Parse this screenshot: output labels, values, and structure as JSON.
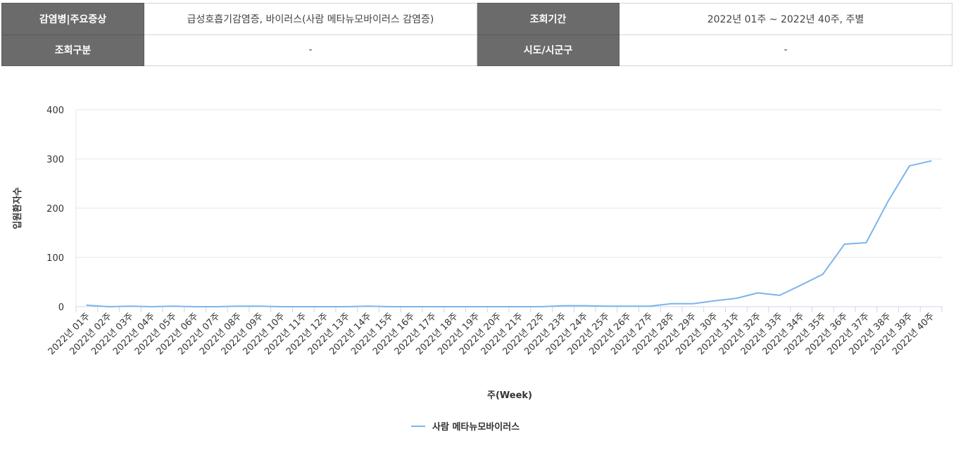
{
  "info_table": {
    "disease_label": "감염병|주요증상",
    "disease_value": "급성호흡기감염증, 바이러스(사람 메타뉴모바이러스 감염증)",
    "period_label": "조회기간",
    "period_value": "2022년 01주 ~ 2022년 40주, 주별",
    "category_label": "조회구분",
    "category_value": "-",
    "region_label": "시도/시군구",
    "region_value": "-"
  },
  "chart_data": {
    "type": "line",
    "xlabel": "주(Week)",
    "ylabel": "입원환자수",
    "ylim": [
      0,
      400
    ],
    "yticks": [
      0,
      100,
      200,
      300,
      400
    ],
    "grid": true,
    "legend_position": "bottom-center",
    "categories": [
      "2022년 01주",
      "2022년 02주",
      "2022년 03주",
      "2022년 04주",
      "2022년 05주",
      "2022년 06주",
      "2022년 07주",
      "2022년 08주",
      "2022년 09주",
      "2022년 10주",
      "2022년 11주",
      "2022년 12주",
      "2022년 13주",
      "2022년 14주",
      "2022년 15주",
      "2022년 16주",
      "2022년 17주",
      "2022년 18주",
      "2022년 19주",
      "2022년 20주",
      "2022년 21주",
      "2022년 22주",
      "2022년 23주",
      "2022년 24주",
      "2022년 25주",
      "2022년 26주",
      "2022년 27주",
      "2022년 28주",
      "2022년 29주",
      "2022년 30주",
      "2022년 31주",
      "2022년 32주",
      "2022년 33주",
      "2022년 34주",
      "2022년 35주",
      "2022년 36주",
      "2022년 37주",
      "2022년 38주",
      "2022년 39주",
      "2022년 40주"
    ],
    "series": [
      {
        "name": "사람 메타뉴모바이러스",
        "color": "#7cb5ec",
        "values": [
          3,
          0,
          1,
          0,
          1,
          0,
          0,
          1,
          1,
          0,
          0,
          0,
          0,
          1,
          0,
          0,
          0,
          0,
          0,
          0,
          0,
          0,
          2,
          2,
          1,
          1,
          1,
          6,
          6,
          12,
          17,
          28,
          23,
          44,
          66,
          127,
          130,
          213,
          286,
          296
        ]
      }
    ]
  }
}
